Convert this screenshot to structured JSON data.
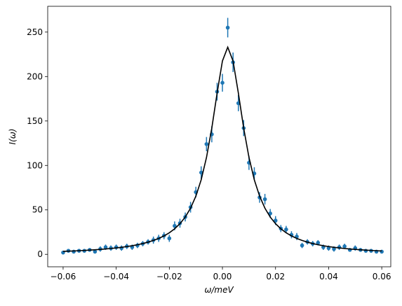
{
  "chart_data": {
    "type": "scatter",
    "x_label": "ω/meV",
    "y_label": "I(ω)",
    "x": [
      -0.06,
      -0.058,
      -0.056,
      -0.054,
      -0.052,
      -0.05,
      -0.048,
      -0.046,
      -0.044,
      -0.042,
      -0.04,
      -0.038,
      -0.036,
      -0.034,
      -0.032,
      -0.03,
      -0.028,
      -0.026,
      -0.024,
      -0.022,
      -0.02,
      -0.018,
      -0.016,
      -0.014,
      -0.012,
      -0.01,
      -0.008,
      -0.006,
      -0.004,
      -0.002,
      0,
      0.002,
      0.004,
      0.006,
      0.008,
      0.01,
      0.012,
      0.014,
      0.016,
      0.018,
      0.02,
      0.022,
      0.024,
      0.026,
      0.028,
      0.03,
      0.032,
      0.034,
      0.036,
      0.038,
      0.04,
      0.042,
      0.044,
      0.046,
      0.048,
      0.05,
      0.052,
      0.054,
      0.056,
      0.058,
      0.06
    ],
    "series": [
      {
        "style": "errorbar",
        "color": "#1f77b4",
        "values": [
          2,
          4,
          3,
          4,
          4,
          5,
          3,
          6,
          8,
          7,
          8,
          7,
          9,
          8,
          10,
          12,
          14,
          16,
          18,
          21,
          18,
          32,
          35,
          42,
          53,
          70,
          92,
          124,
          135,
          183,
          193,
          255,
          216,
          170,
          142,
          103,
          91,
          64,
          62,
          46,
          38,
          29,
          28,
          22,
          20,
          10,
          14,
          12,
          13,
          8,
          7,
          6,
          8,
          9,
          5,
          7,
          5,
          4,
          4,
          3,
          3
        ],
        "errors": [
          2,
          2,
          2,
          2,
          2,
          2,
          2,
          3,
          3,
          3,
          3,
          3,
          3,
          3,
          3,
          3,
          3,
          4,
          4,
          4,
          4,
          5,
          5,
          5,
          6,
          6,
          7,
          8,
          9,
          10,
          10,
          11,
          11,
          9,
          9,
          8,
          7,
          6,
          6,
          5,
          5,
          4,
          4,
          4,
          4,
          3,
          3,
          3,
          3,
          3,
          3,
          3,
          3,
          3,
          2,
          3,
          2,
          2,
          2,
          2,
          2
        ]
      },
      {
        "style": "line",
        "color": "#000000",
        "values": [
          3.36,
          3.58,
          3.83,
          4.11,
          4.41,
          4.75,
          5.13,
          5.55,
          6.03,
          6.58,
          7.2,
          7.91,
          8.74,
          9.69,
          10.81,
          12.13,
          13.71,
          15.6,
          17.9,
          20.73,
          24.26,
          28.73,
          34.47,
          41.97,
          51.96,
          65.45,
          83.88,
          108.99,
          142.07,
          181.4,
          217.53,
          233,
          217.53,
          181.4,
          142.07,
          108.99,
          83.88,
          65.45,
          51.96,
          41.97,
          34.47,
          28.73,
          24.26,
          20.73,
          17.9,
          15.6,
          13.71,
          12.13,
          10.81,
          9.69,
          8.74,
          7.91,
          7.2,
          6.58,
          6.03,
          5.55,
          5.13,
          4.75,
          4.41,
          4.11,
          3.83
        ]
      }
    ],
    "xlim": [
      -0.0658,
      0.0634
    ],
    "ylim": [
      -14,
      279
    ],
    "xticks": [
      {
        "value": -0.06,
        "label": "−0.06"
      },
      {
        "value": -0.04,
        "label": "−0.04"
      },
      {
        "value": -0.02,
        "label": "−0.02"
      },
      {
        "value": 0,
        "label": "0.00"
      },
      0.02,
      0.04,
      0.06
    ],
    "yticks": [
      0,
      50,
      100,
      150,
      200,
      250
    ]
  }
}
